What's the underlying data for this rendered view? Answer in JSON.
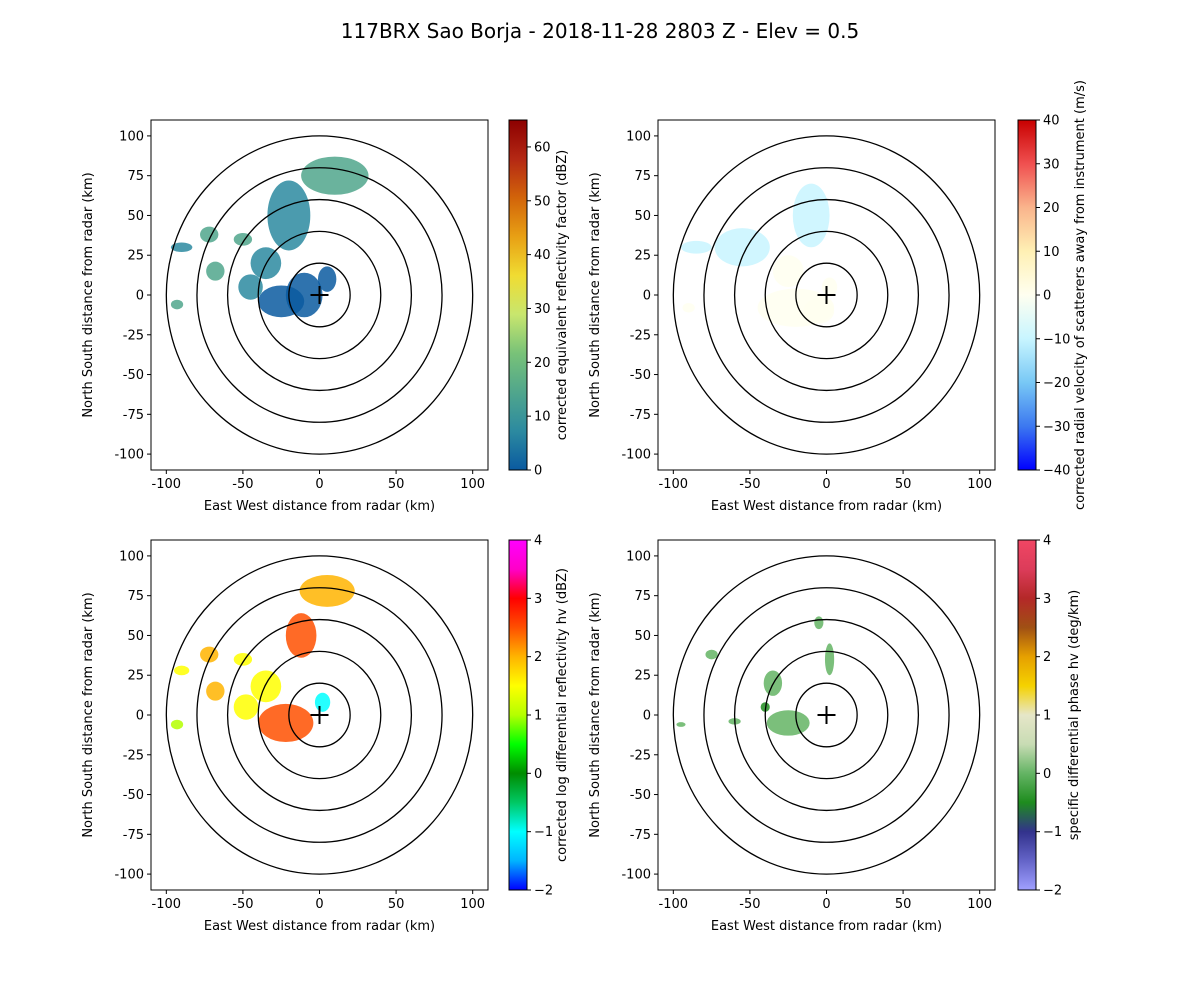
{
  "figure": {
    "title": "117BRX Sao Borja - 2018-11-28 2803 Z -  Elev = 0.5"
  },
  "chart_data": [
    {
      "type": "heatmap",
      "panel": "reflectivity",
      "xlabel": "East West distance from radar (km)",
      "ylabel": "North South distance from radar (km)",
      "xlim": [
        -110,
        110
      ],
      "ylim": [
        -110,
        110
      ],
      "xticks": [
        -100,
        -50,
        0,
        50,
        100
      ],
      "yticks": [
        -100,
        -75,
        -50,
        -25,
        0,
        25,
        50,
        75,
        100
      ],
      "range_rings_km": [
        20,
        40,
        60,
        80,
        100
      ],
      "radar_location": [
        0,
        0
      ],
      "colorbar": {
        "label": "corrected equivalent reflectivity factor (dBZ)",
        "range": [
          0,
          65
        ],
        "ticks": [
          0,
          10,
          20,
          30,
          40,
          50,
          60
        ],
        "colors": [
          "#0a5aa0",
          "#2c8aa0",
          "#50a68c",
          "#78c278",
          "#c8e66e",
          "#f0dc32",
          "#e8a014",
          "#d2640a",
          "#b42814",
          "#8c0000"
        ]
      },
      "echoes": [
        {
          "x": -10,
          "y": 0,
          "rx": 12,
          "ry": 14,
          "value": 4
        },
        {
          "x": -25,
          "y": -4,
          "rx": 15,
          "ry": 10,
          "value": 6
        },
        {
          "x": -35,
          "y": 20,
          "rx": 10,
          "ry": 10,
          "value": 10
        },
        {
          "x": -20,
          "y": 50,
          "rx": 14,
          "ry": 22,
          "value": 12
        },
        {
          "x": 10,
          "y": 75,
          "rx": 22,
          "ry": 12,
          "value": 14
        },
        {
          "x": -50,
          "y": 35,
          "rx": 6,
          "ry": 4,
          "value": 14
        },
        {
          "x": -72,
          "y": 38,
          "rx": 6,
          "ry": 5,
          "value": 16
        },
        {
          "x": -68,
          "y": 15,
          "rx": 6,
          "ry": 6,
          "value": 13
        },
        {
          "x": -93,
          "y": -6,
          "rx": 4,
          "ry": 3,
          "value": 16
        },
        {
          "x": -90,
          "y": 30,
          "rx": 7,
          "ry": 3,
          "value": 12
        },
        {
          "x": -45,
          "y": 5,
          "rx": 8,
          "ry": 8,
          "value": 12
        },
        {
          "x": 5,
          "y": 10,
          "rx": 6,
          "ry": 8,
          "value": 3
        }
      ]
    },
    {
      "type": "heatmap",
      "panel": "velocity",
      "xlabel": "East West distance from radar (km)",
      "ylabel": "North South distance from radar (km)",
      "xlim": [
        -110,
        110
      ],
      "ylim": [
        -110,
        110
      ],
      "xticks": [
        -100,
        -50,
        0,
        50,
        100
      ],
      "yticks": [
        -100,
        -75,
        -50,
        -25,
        0,
        25,
        50,
        75,
        100
      ],
      "range_rings_km": [
        20,
        40,
        60,
        80,
        100
      ],
      "radar_location": [
        0,
        0
      ],
      "colorbar": {
        "label": "corrected radial velocity of scatterers away from instrument (m/s)",
        "range": [
          -40,
          40
        ],
        "ticks": [
          -40,
          -30,
          -20,
          -10,
          0,
          10,
          20,
          30,
          40
        ],
        "colors": [
          "#0000ff",
          "#3c78f0",
          "#78c8f5",
          "#c8f5ff",
          "#fffff0",
          "#fff0b4",
          "#fab48c",
          "#f05050",
          "#c80000"
        ]
      },
      "echoes": [
        {
          "x": -55,
          "y": 30,
          "rx": 18,
          "ry": 12,
          "value": -6
        },
        {
          "x": -10,
          "y": 50,
          "rx": 12,
          "ry": 20,
          "value": -7
        },
        {
          "x": -85,
          "y": 30,
          "rx": 10,
          "ry": 4,
          "value": -5
        },
        {
          "x": -25,
          "y": 15,
          "rx": 10,
          "ry": 10,
          "value": -4
        },
        {
          "x": -20,
          "y": -8,
          "rx": 25,
          "ry": 12,
          "value": 3
        },
        {
          "x": -5,
          "y": -10,
          "rx": 10,
          "ry": 8,
          "value": 4
        },
        {
          "x": 2,
          "y": 5,
          "rx": 5,
          "ry": 6,
          "value": -3
        },
        {
          "x": -90,
          "y": -8,
          "rx": 4,
          "ry": 3,
          "value": 2
        }
      ]
    },
    {
      "type": "heatmap",
      "panel": "differential_reflectivity",
      "xlabel": "East West distance from radar (km)",
      "ylabel": "North South distance from radar (km)",
      "xlim": [
        -110,
        110
      ],
      "ylim": [
        -110,
        110
      ],
      "xticks": [
        -100,
        -50,
        0,
        50,
        100
      ],
      "yticks": [
        -100,
        -75,
        -50,
        -25,
        0,
        25,
        50,
        75,
        100
      ],
      "range_rings_km": [
        20,
        40,
        60,
        80,
        100
      ],
      "radar_location": [
        0,
        0
      ],
      "colorbar": {
        "label": "corrected log differential reflectivity hv (dBZ)",
        "range": [
          -2,
          4
        ],
        "ticks": [
          -2,
          -1,
          0,
          1,
          2,
          3,
          4
        ],
        "colors": [
          "#0000ff",
          "#00b4ff",
          "#00ffff",
          "#00c864",
          "#008c00",
          "#00ff00",
          "#b4ff00",
          "#ffff00",
          "#ffb400",
          "#ff5000",
          "#ff0000",
          "#ff00c8",
          "#ff00ff"
        ]
      },
      "echoes": [
        {
          "x": -22,
          "y": -5,
          "rx": 18,
          "ry": 12,
          "value": 2.2
        },
        {
          "x": -35,
          "y": 18,
          "rx": 10,
          "ry": 10,
          "value": 1.6
        },
        {
          "x": -12,
          "y": 50,
          "rx": 10,
          "ry": 14,
          "value": 2.4
        },
        {
          "x": 5,
          "y": 78,
          "rx": 18,
          "ry": 10,
          "value": 2.0
        },
        {
          "x": -72,
          "y": 38,
          "rx": 6,
          "ry": 5,
          "value": 2.1
        },
        {
          "x": -68,
          "y": 15,
          "rx": 6,
          "ry": 6,
          "value": 1.8
        },
        {
          "x": -48,
          "y": 5,
          "rx": 8,
          "ry": 8,
          "value": 1.5
        },
        {
          "x": -93,
          "y": -6,
          "rx": 4,
          "ry": 3,
          "value": 1.2
        },
        {
          "x": -50,
          "y": 35,
          "rx": 6,
          "ry": 4,
          "value": 1.3
        },
        {
          "x": -90,
          "y": 28,
          "rx": 5,
          "ry": 3,
          "value": 1.4
        },
        {
          "x": 2,
          "y": 8,
          "rx": 5,
          "ry": 6,
          "value": -0.8
        }
      ]
    },
    {
      "type": "heatmap",
      "panel": "specific_differential_phase",
      "xlabel": "East West distance from radar (km)",
      "ylabel": "North South distance from radar (km)",
      "xlim": [
        -110,
        110
      ],
      "ylim": [
        -110,
        110
      ],
      "xticks": [
        -100,
        -50,
        0,
        50,
        100
      ],
      "yticks": [
        -100,
        -75,
        -50,
        -25,
        0,
        25,
        50,
        75,
        100
      ],
      "range_rings_km": [
        20,
        40,
        60,
        80,
        100
      ],
      "radar_location": [
        0,
        0
      ],
      "colorbar": {
        "label": "specific differential phase hv (deg/km)",
        "range": [
          -2,
          4
        ],
        "ticks": [
          -2,
          -1,
          0,
          1,
          2,
          3,
          4
        ],
        "colors": [
          "#a0a0ff",
          "#6464c8",
          "#32328c",
          "#1e8c1e",
          "#64b464",
          "#c8dcb4",
          "#e6e6c8",
          "#f5d200",
          "#e6a000",
          "#a05014",
          "#b42828",
          "#dc3c5a",
          "#f04664"
        ]
      },
      "echoes": [
        {
          "x": -25,
          "y": -5,
          "rx": 14,
          "ry": 8,
          "value": 0.1
        },
        {
          "x": -35,
          "y": 20,
          "rx": 6,
          "ry": 8,
          "value": 0.2
        },
        {
          "x": 2,
          "y": 35,
          "rx": 3,
          "ry": 10,
          "value": 0.2
        },
        {
          "x": -5,
          "y": 58,
          "rx": 3,
          "ry": 4,
          "value": 0.1
        },
        {
          "x": -75,
          "y": 38,
          "rx": 4,
          "ry": 3,
          "value": 0.0
        },
        {
          "x": -60,
          "y": -4,
          "rx": 4,
          "ry": 2,
          "value": 0.2
        },
        {
          "x": -95,
          "y": -6,
          "rx": 3,
          "ry": 1.5,
          "value": 0.1
        },
        {
          "x": -40,
          "y": 5,
          "rx": 3,
          "ry": 3,
          "value": -0.6
        }
      ]
    }
  ]
}
